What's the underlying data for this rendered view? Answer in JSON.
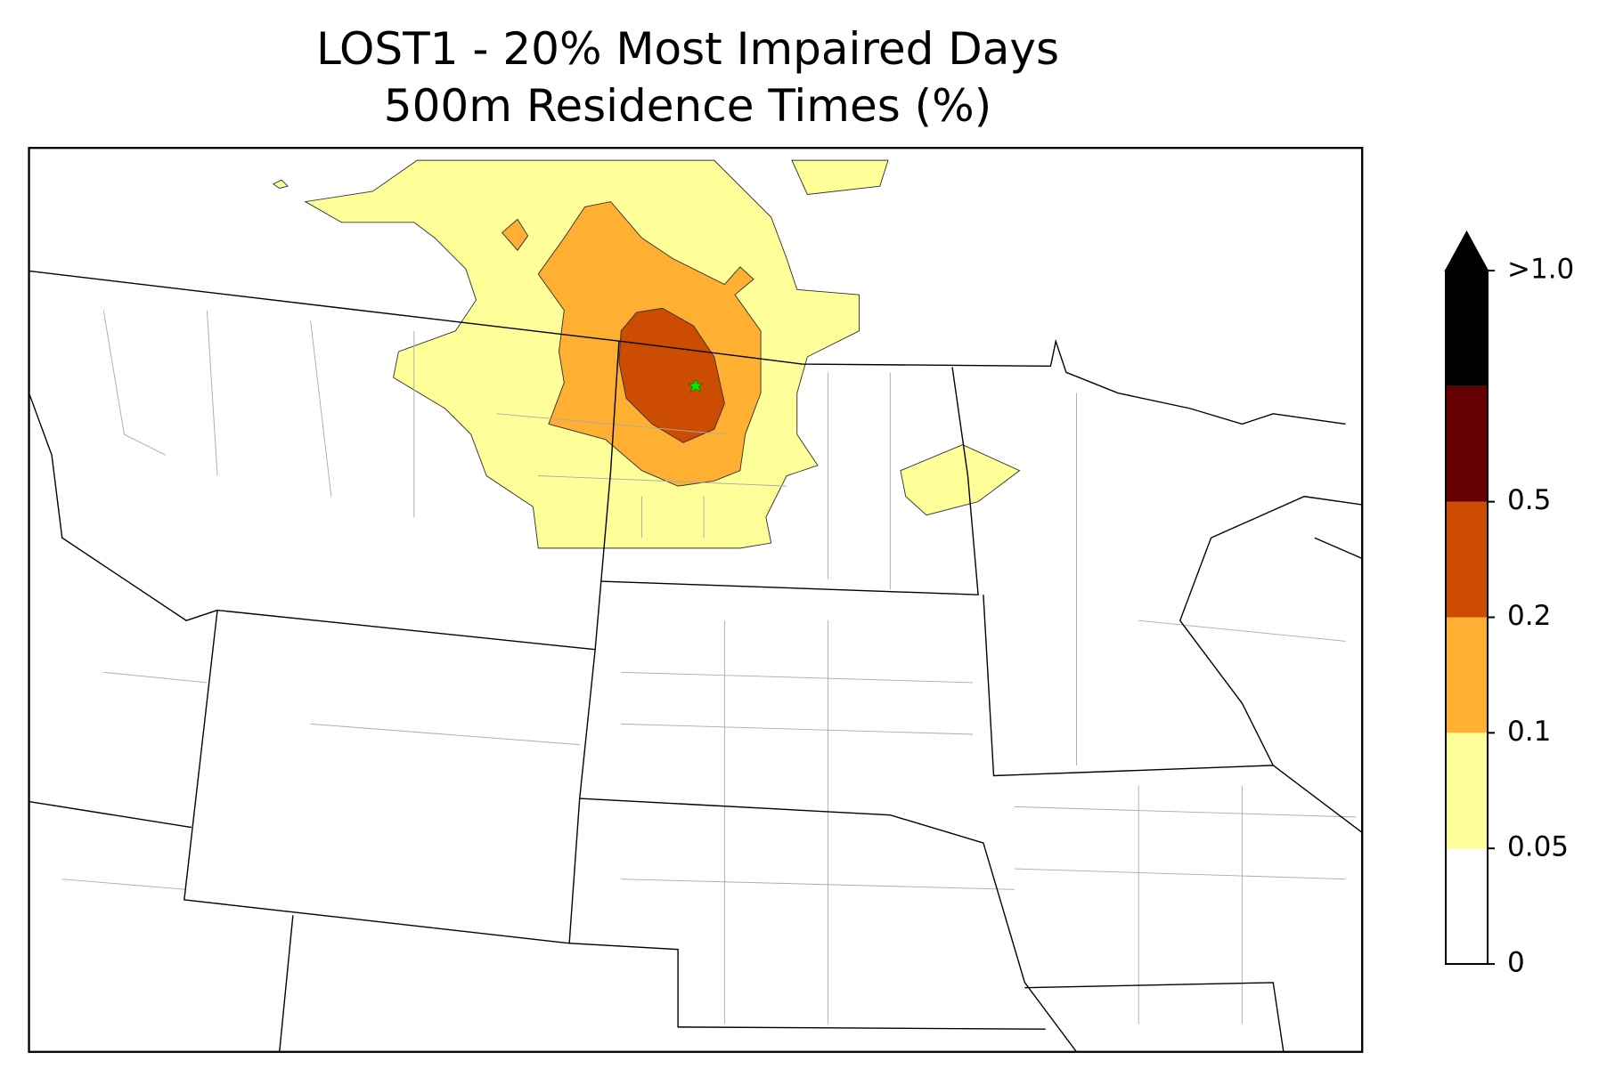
{
  "title": [
    "LOST1 - 20% Most Impaired Days",
    "500m Residence Times (%)"
  ],
  "colorbar": {
    "levels": [
      {
        "label": "0",
        "color": "#ffffff"
      },
      {
        "label": "0.05",
        "color": "#ffff99"
      },
      {
        "label": "0.1",
        "color": "#ffb033"
      },
      {
        "label": "0.2",
        "color": "#cc4c02"
      },
      {
        "label": "0.5",
        "color": "#660000"
      },
      {
        "label": ">1.0",
        "color": "#000000"
      }
    ]
  }
}
